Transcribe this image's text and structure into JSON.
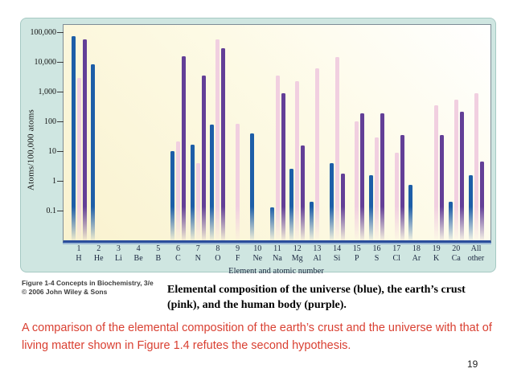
{
  "page": {
    "number": "19"
  },
  "figure_credit": {
    "line1": "Figure 1-4  Concepts in Biochemistry, 3/e",
    "line2": "© 2006 John Wiley & Sons"
  },
  "caption": "Elemental composition of the universe (blue), the earth’s crust (pink), and the human body (purple).",
  "note": "A comparison of the elemental composition of the earth’s crust and the universe with that of living matter shown in Figure 1.4 refutes the second hypothesis.",
  "colors": {
    "universe_blue": "#1d5ea8",
    "crust_pink": "#f1cfe0",
    "body_purple": "#633f97",
    "panel_background": "#cfe6e1",
    "plot_background": "#faf3d2",
    "axis_line_navy": "#2a4d9b",
    "note_red": "#d93f31"
  },
  "chart_data": {
    "type": "bar",
    "scale_y": "log",
    "title": "",
    "ylabel": "Atoms/100,000 atoms",
    "xlabel": "Element and atomic number",
    "ylim": [
      0.01,
      180000
    ],
    "yticks": [
      100000,
      10000,
      1000,
      100,
      10,
      1,
      0.1
    ],
    "ytick_labels": [
      "100,000",
      "10,000",
      "1,000",
      "100",
      "10",
      "1",
      "0.1"
    ],
    "grid": false,
    "legend_position": "none",
    "categories": [
      {
        "number": "1",
        "symbol": "H"
      },
      {
        "number": "2",
        "symbol": "He"
      },
      {
        "number": "3",
        "symbol": "Li"
      },
      {
        "number": "4",
        "symbol": "Be"
      },
      {
        "number": "5",
        "symbol": "B"
      },
      {
        "number": "6",
        "symbol": "C"
      },
      {
        "number": "7",
        "symbol": "N"
      },
      {
        "number": "8",
        "symbol": "O"
      },
      {
        "number": "9",
        "symbol": "F"
      },
      {
        "number": "10",
        "symbol": "Ne"
      },
      {
        "number": "11",
        "symbol": "Na"
      },
      {
        "number": "12",
        "symbol": "Mg"
      },
      {
        "number": "13",
        "symbol": "Al"
      },
      {
        "number": "14",
        "symbol": "Si"
      },
      {
        "number": "15",
        "symbol": "P"
      },
      {
        "number": "16",
        "symbol": "S"
      },
      {
        "number": "17",
        "symbol": "Cl"
      },
      {
        "number": "18",
        "symbol": "Ar"
      },
      {
        "number": "19",
        "symbol": "K"
      },
      {
        "number": "20",
        "symbol": "Ca"
      },
      {
        "number": "All",
        "symbol": "other"
      }
    ],
    "series": [
      {
        "key": "universe",
        "name": "universe (blue)",
        "color": "#1d5ea8",
        "values": [
          75000,
          8500,
          null,
          null,
          null,
          10,
          17,
          80,
          null,
          40,
          0.13,
          2.6,
          0.2,
          4,
          null,
          1.6,
          null,
          0.75,
          null,
          0.2,
          1.6
        ]
      },
      {
        "key": "crust",
        "name": "earth’s crust (pink)",
        "color": "#f1cfe0",
        "values": [
          3000,
          null,
          null,
          null,
          null,
          22,
          4,
          60000,
          85,
          null,
          3500,
          2300,
          6200,
          15000,
          100,
          30,
          9,
          null,
          360,
          540,
          900
        ]
      },
      {
        "key": "body",
        "name": "human body (purple)",
        "color": "#633f97",
        "values": [
          60000,
          null,
          null,
          null,
          null,
          16000,
          3500,
          30000,
          null,
          null,
          900,
          16,
          null,
          1.8,
          190,
          190,
          35,
          null,
          35,
          220,
          4.5
        ]
      }
    ]
  }
}
